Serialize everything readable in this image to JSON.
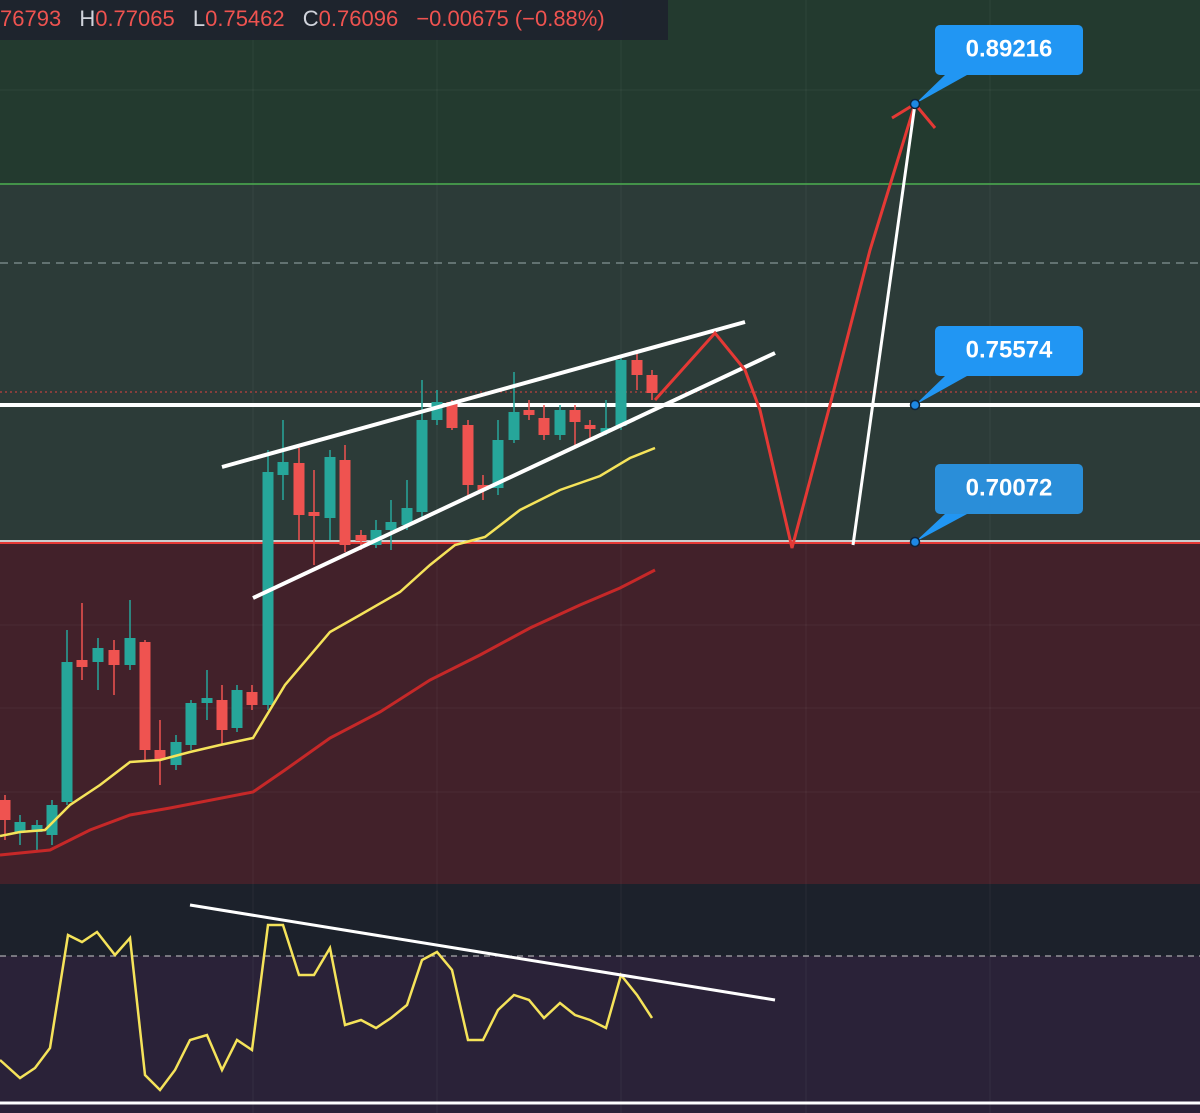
{
  "header": {
    "open": "76793",
    "high_prefix": "H",
    "high": "0.77065",
    "low_prefix": "L",
    "low": "0.75462",
    "close_prefix": "C",
    "close": "0.76096",
    "change": "−0.00675 (−0.88%)"
  },
  "price_labels": [
    "0.89216",
    "0.75574",
    "0.70072"
  ]
}
